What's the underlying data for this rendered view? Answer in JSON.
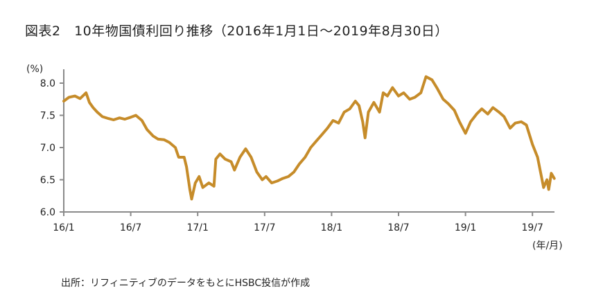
{
  "title": "図表2　10年物国債利回り推移（2016年1月1日～2019年8月30日）",
  "source": "出所：リフィニティブのデータをもとにHSBC投信が作成",
  "colors": {
    "line": "#C68C2A",
    "axis": "#8a8a8a"
  },
  "chart_data": {
    "type": "line",
    "title": "図表2　10年物国債利回り推移（2016年1月1日～2019年8月30日）",
    "ylabel": "(%)",
    "xlabel": "(年/月)",
    "ylim": [
      6.0,
      8.25
    ],
    "xlim": [
      "2016-01-01",
      "2019-09-01"
    ],
    "yticks": [
      6.0,
      6.5,
      7.0,
      7.5,
      8.0
    ],
    "ytick_labels": [
      "6.0",
      "6.5",
      "7.0",
      "7.5",
      "8.0"
    ],
    "xticks": [
      "2016-01-01",
      "2016-07-01",
      "2017-01-01",
      "2017-07-01",
      "2018-01-01",
      "2018-07-01",
      "2019-01-01",
      "2019-07-01"
    ],
    "xtick_labels": [
      "16/1",
      "16/7",
      "17/1",
      "17/7",
      "18/1",
      "18/7",
      "19/1",
      "19/7"
    ],
    "grid": false,
    "series": [
      {
        "x": [
          "2016-01-01",
          "2016-01-15",
          "2016-02-01",
          "2016-02-15",
          "2016-03-01",
          "2016-03-10",
          "2016-03-20",
          "2016-04-01",
          "2016-04-15",
          "2016-05-01",
          "2016-05-15",
          "2016-06-01",
          "2016-06-15",
          "2016-07-01",
          "2016-07-15",
          "2016-08-01",
          "2016-08-15",
          "2016-09-01",
          "2016-09-15",
          "2016-10-01",
          "2016-10-15",
          "2016-11-01",
          "2016-11-10",
          "2016-11-25",
          "2016-12-01",
          "2016-12-10",
          "2016-12-15",
          "2016-12-25",
          "2017-01-05",
          "2017-01-15",
          "2017-02-01",
          "2017-02-15",
          "2017-02-20",
          "2017-03-01",
          "2017-03-15",
          "2017-04-01",
          "2017-04-10",
          "2017-04-25",
          "2017-05-10",
          "2017-05-25",
          "2017-06-10",
          "2017-06-25",
          "2017-07-05",
          "2017-07-20",
          "2017-08-05",
          "2017-08-20",
          "2017-09-05",
          "2017-09-20",
          "2017-10-05",
          "2017-10-20",
          "2017-11-05",
          "2017-11-20",
          "2017-12-05",
          "2017-12-20",
          "2018-01-05",
          "2018-01-20",
          "2018-02-05",
          "2018-02-20",
          "2018-03-05",
          "2018-03-15",
          "2018-03-25",
          "2018-04-01",
          "2018-04-10",
          "2018-04-25",
          "2018-05-10",
          "2018-05-20",
          "2018-06-01",
          "2018-06-15",
          "2018-07-01",
          "2018-07-15",
          "2018-08-01",
          "2018-08-15",
          "2018-09-01",
          "2018-09-15",
          "2018-10-01",
          "2018-10-15",
          "2018-11-01",
          "2018-11-15",
          "2018-12-01",
          "2018-12-15",
          "2019-01-01",
          "2019-01-15",
          "2019-02-01",
          "2019-02-15",
          "2019-03-01",
          "2019-03-15",
          "2019-04-01",
          "2019-04-15",
          "2019-05-01",
          "2019-05-15",
          "2019-06-01",
          "2019-06-15",
          "2019-07-01",
          "2019-07-15",
          "2019-08-01",
          "2019-08-10",
          "2019-08-15",
          "2019-08-22",
          "2019-08-30"
        ],
        "values": [
          7.72,
          7.78,
          7.8,
          7.76,
          7.85,
          7.7,
          7.62,
          7.55,
          7.48,
          7.45,
          7.43,
          7.46,
          7.44,
          7.47,
          7.5,
          7.42,
          7.28,
          7.18,
          7.13,
          7.12,
          7.08,
          7.0,
          6.85,
          6.85,
          6.7,
          6.35,
          6.2,
          6.45,
          6.55,
          6.38,
          6.45,
          6.4,
          6.82,
          6.9,
          6.82,
          6.78,
          6.65,
          6.85,
          6.98,
          6.85,
          6.62,
          6.5,
          6.55,
          6.45,
          6.48,
          6.52,
          6.55,
          6.62,
          6.75,
          6.85,
          7.0,
          7.1,
          7.2,
          7.3,
          7.42,
          7.38,
          7.55,
          7.6,
          7.72,
          7.65,
          7.4,
          7.15,
          7.55,
          7.7,
          7.55,
          7.85,
          7.8,
          7.93,
          7.8,
          7.85,
          7.75,
          7.78,
          7.85,
          8.1,
          8.05,
          7.92,
          7.75,
          7.68,
          7.58,
          7.4,
          7.22,
          7.4,
          7.52,
          7.6,
          7.52,
          7.62,
          7.55,
          7.48,
          7.3,
          7.38,
          7.4,
          7.35,
          7.05,
          6.85,
          6.38,
          6.5,
          6.35,
          6.6,
          6.52
        ]
      }
    ]
  }
}
